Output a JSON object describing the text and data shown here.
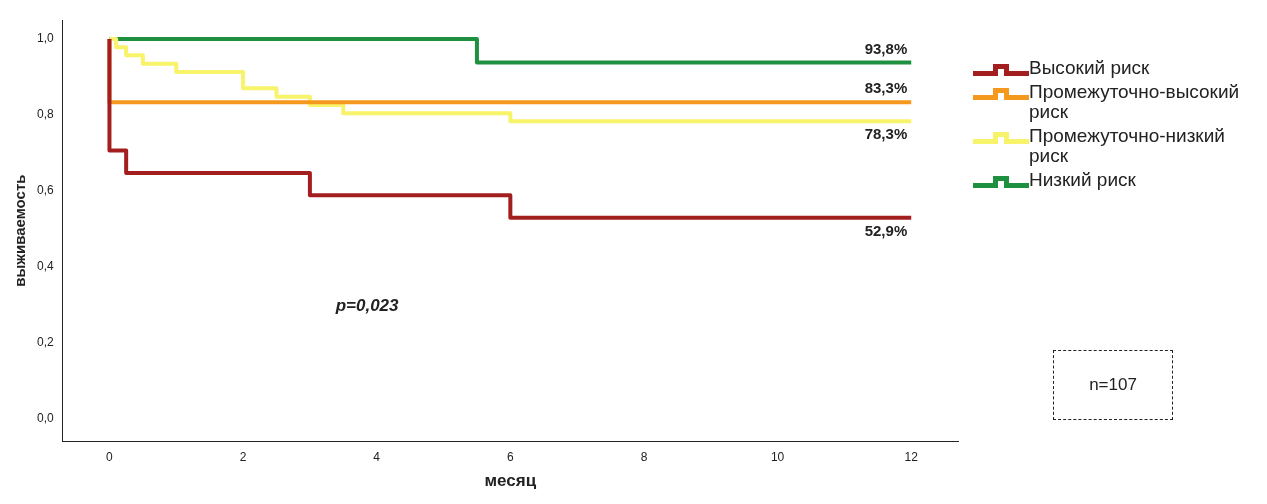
{
  "chart_data": {
    "type": "step",
    "xlabel": "месяц",
    "ylabel": "выживаемость",
    "xlim": [
      -0.7,
      12.7
    ],
    "ylim": [
      -0.06,
      1.05
    ],
    "xticks": [
      0,
      2,
      4,
      6,
      8,
      10,
      12
    ],
    "yticks": [
      {
        "value": 0,
        "label": "0,0"
      },
      {
        "value": 0.2,
        "label": "0,2"
      },
      {
        "value": 0.4,
        "label": "0,4"
      },
      {
        "value": 0.6,
        "label": "0,6"
      },
      {
        "value": 0.8,
        "label": "0,8"
      },
      {
        "value": 1,
        "label": "1,0"
      }
    ],
    "series": [
      {
        "name": "Высокий риск",
        "color": "#a31f1f",
        "x": [
          0,
          0,
          0.25,
          3,
          6,
          12
        ],
        "values": [
          1,
          0.706,
          0.647,
          0.588,
          0.529,
          0.529
        ],
        "value_labels": [
          null,
          null,
          null,
          null,
          null,
          "52,9%"
        ]
      },
      {
        "name": "Промежуточно-высокий риск",
        "color": "#f5981e",
        "x": [
          0,
          0,
          12
        ],
        "values": [
          1,
          0.833,
          0.833
        ],
        "value_labels": [
          null,
          null,
          "83,3%"
        ]
      },
      {
        "name": "Промежуточно-низкий риск",
        "color": "#f7f36a",
        "x": [
          0,
          0.1,
          0.25,
          0.5,
          1,
          2,
          2.5,
          3,
          3.5,
          6,
          12
        ],
        "values": [
          1,
          0.978,
          0.957,
          0.935,
          0.913,
          0.87,
          0.848,
          0.826,
          0.804,
          0.783,
          0.783
        ],
        "value_labels": [
          null,
          null,
          null,
          null,
          null,
          null,
          null,
          null,
          null,
          null,
          "78,3%"
        ]
      },
      {
        "name": "Низкий риск",
        "color": "#1e9040",
        "x": [
          0,
          5.5,
          12
        ],
        "values": [
          1,
          0.938,
          0.938
        ],
        "value_labels": [
          null,
          null,
          "93,8%"
        ]
      }
    ],
    "annotations": [
      "p=0,023",
      "n=107"
    ],
    "legend": "top right",
    "grid": false,
    "marker": "none",
    "line_style": "solid"
  }
}
